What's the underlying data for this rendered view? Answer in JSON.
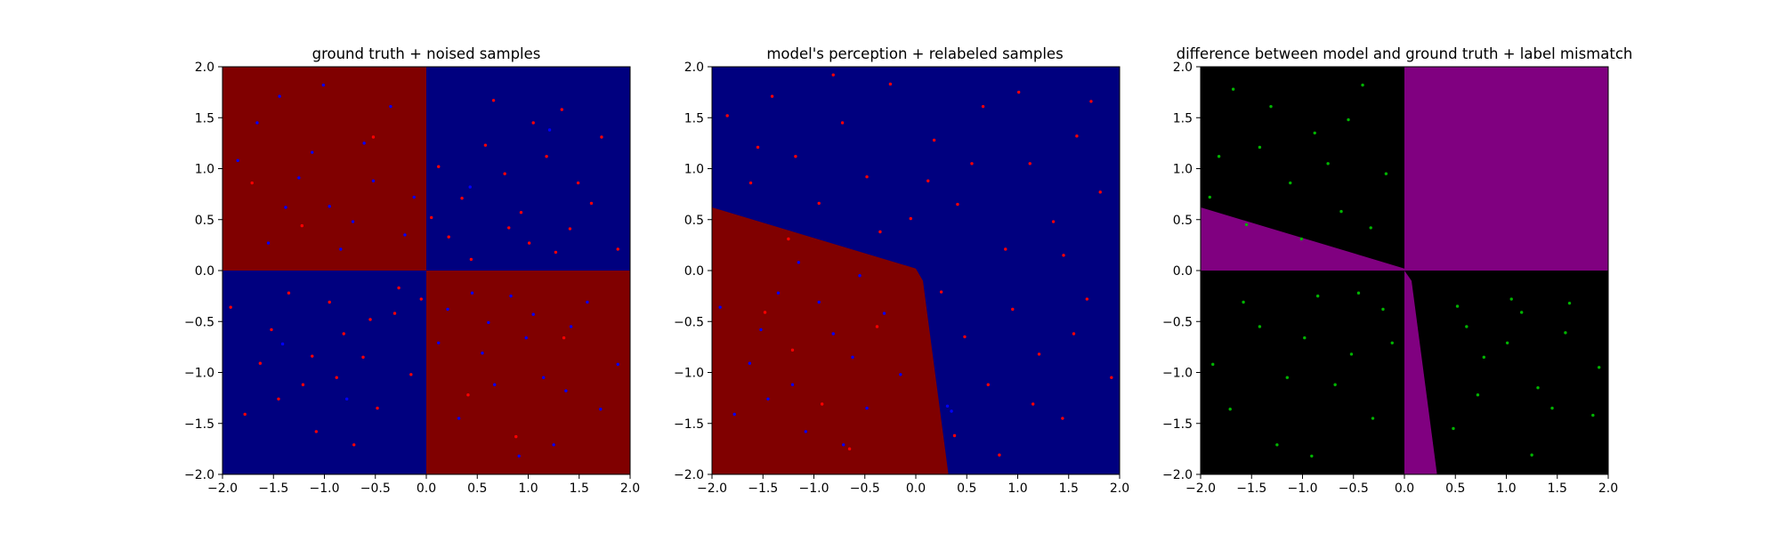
{
  "colors": {
    "red": "#800000",
    "blue": "#00007f",
    "black": "#000000",
    "purple": "#800080",
    "point_red": "#ff0000",
    "point_blue": "#0000ff",
    "point_green": "#00b400"
  },
  "chart_data": [
    {
      "type": "scatter",
      "title": "ground truth + noised samples",
      "xlim": [
        -2,
        2
      ],
      "ylim": [
        -2,
        2
      ],
      "xticks": [
        "−2.0",
        "−1.5",
        "−1.0",
        "−0.5",
        "0.0",
        "0.5",
        "1.0",
        "1.5",
        "2.0"
      ],
      "yticks": [
        "−2.0",
        "−1.5",
        "−1.0",
        "−0.5",
        "0.0",
        "0.5",
        "1.0",
        "1.5",
        "2.0"
      ],
      "background_regions": [
        {
          "x": [
            -2,
            0
          ],
          "y": [
            0,
            2
          ],
          "color": "red"
        },
        {
          "x": [
            0,
            2
          ],
          "y": [
            0,
            2
          ],
          "color": "blue"
        },
        {
          "x": [
            -2,
            0
          ],
          "y": [
            -2,
            0
          ],
          "color": "blue"
        },
        {
          "x": [
            0,
            2
          ],
          "y": [
            -2,
            0
          ],
          "color": "red"
        }
      ],
      "series": [
        {
          "color": "point_red",
          "points": [
            [
              0.12,
              1.02
            ],
            [
              0.35,
              0.71
            ],
            [
              0.58,
              1.23
            ],
            [
              0.81,
              0.42
            ],
            [
              1.05,
              1.45
            ],
            [
              1.27,
              0.18
            ],
            [
              1.49,
              0.86
            ],
            [
              0.22,
              0.33
            ],
            [
              0.66,
              1.67
            ],
            [
              0.93,
              0.57
            ],
            [
              1.18,
              1.12
            ],
            [
              1.41,
              0.41
            ],
            [
              1.72,
              1.31
            ],
            [
              0.05,
              0.52
            ],
            [
              0.44,
              0.11
            ],
            [
              0.77,
              0.95
            ],
            [
              1.01,
              0.27
            ],
            [
              1.33,
              1.58
            ],
            [
              1.62,
              0.66
            ],
            [
              1.88,
              0.21
            ],
            [
              -0.31,
              -0.42
            ],
            [
              -0.62,
              -0.85
            ],
            [
              -0.95,
              -0.31
            ],
            [
              -1.21,
              -1.12
            ],
            [
              -1.52,
              -0.58
            ],
            [
              -1.78,
              -1.41
            ],
            [
              -0.15,
              -1.02
            ],
            [
              -0.48,
              -1.35
            ],
            [
              -0.81,
              -0.62
            ],
            [
              -1.08,
              -1.58
            ],
            [
              -1.35,
              -0.22
            ],
            [
              -1.63,
              -0.91
            ],
            [
              -0.27,
              -0.17
            ],
            [
              -0.71,
              -1.71
            ],
            [
              -1.12,
              -0.84
            ],
            [
              -1.45,
              -1.26
            ],
            [
              -0.55,
              -0.48
            ],
            [
              -0.88,
              -1.05
            ],
            [
              -1.92,
              -0.36
            ],
            [
              -0.05,
              -0.28
            ],
            [
              -1.22,
              0.44
            ],
            [
              -0.52,
              1.31
            ],
            [
              0.41,
              -1.22
            ],
            [
              1.35,
              -0.66
            ],
            [
              -1.71,
              0.86
            ],
            [
              0.88,
              -1.63
            ]
          ]
        },
        {
          "color": "point_blue",
          "points": [
            [
              -0.21,
              0.35
            ],
            [
              -0.52,
              0.88
            ],
            [
              -0.84,
              0.21
            ],
            [
              -1.12,
              1.16
            ],
            [
              -1.38,
              0.62
            ],
            [
              -1.66,
              1.45
            ],
            [
              -0.35,
              1.61
            ],
            [
              -0.72,
              0.48
            ],
            [
              -1.01,
              1.82
            ],
            [
              -1.25,
              0.91
            ],
            [
              -1.55,
              0.27
            ],
            [
              -1.85,
              1.08
            ],
            [
              -0.12,
              0.72
            ],
            [
              -0.61,
              1.25
            ],
            [
              -0.95,
              0.63
            ],
            [
              -1.44,
              1.71
            ],
            [
              0.21,
              -0.38
            ],
            [
              0.55,
              -0.81
            ],
            [
              0.83,
              -0.25
            ],
            [
              1.15,
              -1.05
            ],
            [
              1.42,
              -0.55
            ],
            [
              1.71,
              -1.36
            ],
            [
              0.32,
              -1.45
            ],
            [
              0.67,
              -1.12
            ],
            [
              0.98,
              -0.66
            ],
            [
              1.25,
              -1.71
            ],
            [
              1.58,
              -0.31
            ],
            [
              1.88,
              -0.92
            ],
            [
              0.12,
              -0.71
            ],
            [
              0.45,
              -0.22
            ],
            [
              0.91,
              -1.82
            ],
            [
              1.37,
              -1.18
            ],
            [
              0.61,
              -0.51
            ],
            [
              1.05,
              -0.43
            ],
            [
              0.43,
              0.82
            ],
            [
              1.21,
              1.38
            ],
            [
              -0.78,
              -1.26
            ],
            [
              -1.41,
              -0.72
            ]
          ]
        }
      ]
    },
    {
      "type": "scatter",
      "title": "model's perception + relabeled samples",
      "xlim": [
        -2,
        2
      ],
      "ylim": [
        -2,
        2
      ],
      "xticks": [
        "−2.0",
        "−1.5",
        "−1.0",
        "−0.5",
        "0.0",
        "0.5",
        "1.0",
        "1.5",
        "2.0"
      ],
      "yticks": [
        "−2.0",
        "−1.5",
        "−1.0",
        "−0.5",
        "0.0",
        "0.5",
        "1.0",
        "1.5",
        "2.0"
      ],
      "background_color": "blue",
      "background_regions": [
        {
          "polygon": [
            [
              -2,
              0.62
            ],
            [
              0,
              0.02
            ],
            [
              0.07,
              -0.1
            ],
            [
              0.32,
              -2
            ],
            [
              -2,
              -2
            ]
          ],
          "color": "red"
        }
      ],
      "series": [
        {
          "color": "point_red",
          "points": [
            [
              -1.85,
              1.52
            ],
            [
              -1.62,
              0.86
            ],
            [
              -1.41,
              1.71
            ],
            [
              -1.18,
              1.12
            ],
            [
              -0.95,
              0.66
            ],
            [
              -0.72,
              1.45
            ],
            [
              -0.48,
              0.92
            ],
            [
              -0.25,
              1.83
            ],
            [
              -0.05,
              0.51
            ],
            [
              0.18,
              1.28
            ],
            [
              0.41,
              0.65
            ],
            [
              0.66,
              1.61
            ],
            [
              0.88,
              0.21
            ],
            [
              1.12,
              1.05
            ],
            [
              1.35,
              0.48
            ],
            [
              1.58,
              1.32
            ],
            [
              1.81,
              0.77
            ],
            [
              -1.55,
              1.21
            ],
            [
              -1.25,
              0.31
            ],
            [
              -0.81,
              1.92
            ],
            [
              -0.35,
              0.38
            ],
            [
              0.12,
              0.88
            ],
            [
              0.55,
              1.05
            ],
            [
              1.01,
              1.75
            ],
            [
              1.45,
              0.15
            ],
            [
              1.72,
              1.66
            ],
            [
              0.25,
              -0.21
            ],
            [
              0.48,
              -0.65
            ],
            [
              0.71,
              -1.12
            ],
            [
              0.95,
              -0.38
            ],
            [
              1.21,
              -0.82
            ],
            [
              1.44,
              -1.45
            ],
            [
              1.68,
              -0.28
            ],
            [
              1.92,
              -1.05
            ],
            [
              0.38,
              -1.62
            ],
            [
              0.82,
              -1.81
            ],
            [
              1.15,
              -1.31
            ],
            [
              1.55,
              -0.62
            ],
            [
              -0.38,
              -0.55
            ],
            [
              -0.92,
              -1.31
            ],
            [
              -1.48,
              -0.41
            ],
            [
              -0.65,
              -1.75
            ],
            [
              -1.21,
              -0.78
            ]
          ]
        },
        {
          "color": "point_blue",
          "points": [
            [
              -0.31,
              -0.42
            ],
            [
              -0.62,
              -0.85
            ],
            [
              -0.95,
              -0.31
            ],
            [
              -1.21,
              -1.12
            ],
            [
              -1.52,
              -0.58
            ],
            [
              -1.78,
              -1.41
            ],
            [
              -0.15,
              -1.02
            ],
            [
              -0.48,
              -1.35
            ],
            [
              -0.81,
              -0.62
            ],
            [
              -1.08,
              -1.58
            ],
            [
              -1.35,
              -0.22
            ],
            [
              -1.63,
              -0.91
            ],
            [
              -0.71,
              -1.71
            ],
            [
              -1.45,
              -1.26
            ],
            [
              -1.92,
              -0.36
            ],
            [
              -0.55,
              -0.05
            ],
            [
              -1.15,
              0.08
            ],
            [
              0.31,
              -1.33
            ],
            [
              0.35,
              -1.38
            ]
          ]
        }
      ]
    },
    {
      "type": "scatter",
      "title": "difference between model and ground truth + label mismatch",
      "xlim": [
        -2,
        2
      ],
      "ylim": [
        -2,
        2
      ],
      "xticks": [
        "−2.0",
        "−1.5",
        "−1.0",
        "−0.5",
        "0.0",
        "0.5",
        "1.0",
        "1.5",
        "2.0"
      ],
      "yticks": [
        "−2.0",
        "−1.5",
        "−1.0",
        "−0.5",
        "0.0",
        "0.5",
        "1.0",
        "1.5",
        "2.0"
      ],
      "background_color": "black",
      "background_regions": [
        {
          "polygon": [
            [
              0,
              0
            ],
            [
              2,
              0
            ],
            [
              2,
              2
            ],
            [
              0,
              2
            ]
          ],
          "color": "purple"
        },
        {
          "polygon": [
            [
              -2,
              0.62
            ],
            [
              0,
              0.02
            ],
            [
              0,
              0
            ],
            [
              -2,
              0
            ]
          ],
          "color": "purple"
        },
        {
          "polygon": [
            [
              0,
              0
            ],
            [
              0.07,
              -0.1
            ],
            [
              0.32,
              -2
            ],
            [
              0,
              -2
            ]
          ],
          "color": "purple"
        }
      ],
      "series": [
        {
          "color": "point_green",
          "points": [
            [
              -1.82,
              1.12
            ],
            [
              -1.55,
              0.45
            ],
            [
              -1.31,
              1.61
            ],
            [
              -1.12,
              0.86
            ],
            [
              -0.88,
              1.35
            ],
            [
              -0.62,
              0.58
            ],
            [
              -0.41,
              1.82
            ],
            [
              -0.18,
              0.95
            ],
            [
              -1.68,
              1.78
            ],
            [
              -1.01,
              0.31
            ],
            [
              -0.75,
              1.05
            ],
            [
              -0.33,
              0.42
            ],
            [
              -1.42,
              1.21
            ],
            [
              -0.55,
              1.48
            ],
            [
              -1.91,
              0.72
            ],
            [
              -0.21,
              -0.38
            ],
            [
              -0.52,
              -0.82
            ],
            [
              -0.85,
              -0.25
            ],
            [
              -1.15,
              -1.05
            ],
            [
              -1.42,
              -0.55
            ],
            [
              -1.71,
              -1.36
            ],
            [
              -0.31,
              -1.45
            ],
            [
              -0.68,
              -1.12
            ],
            [
              -0.98,
              -0.66
            ],
            [
              -1.25,
              -1.71
            ],
            [
              -1.58,
              -0.31
            ],
            [
              -1.88,
              -0.92
            ],
            [
              -0.12,
              -0.71
            ],
            [
              -0.45,
              -0.22
            ],
            [
              -0.91,
              -1.82
            ],
            [
              0.52,
              -0.35
            ],
            [
              0.78,
              -0.85
            ],
            [
              1.05,
              -0.28
            ],
            [
              1.31,
              -1.15
            ],
            [
              1.58,
              -0.61
            ],
            [
              1.85,
              -1.42
            ],
            [
              0.48,
              -1.55
            ],
            [
              0.72,
              -1.22
            ],
            [
              1.01,
              -0.71
            ],
            [
              1.25,
              -1.81
            ],
            [
              1.62,
              -0.32
            ],
            [
              1.91,
              -0.95
            ],
            [
              0.61,
              -0.55
            ],
            [
              1.15,
              -0.41
            ],
            [
              1.45,
              -1.35
            ]
          ]
        }
      ]
    }
  ]
}
